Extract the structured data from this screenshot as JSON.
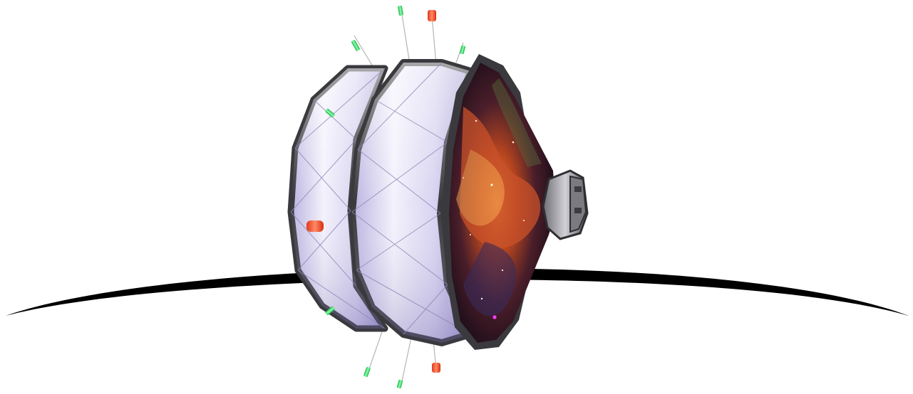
{
  "scene": {
    "background": "#ffffff",
    "colors": {
      "arc": "#000000",
      "hull_light": "#f2f0fb",
      "hull_mid": "#c9c3ea",
      "hull_dark": "#8f87c2",
      "frame": "#3a3a3e",
      "strut": "#a6a6a6",
      "marker_green": "#3be56a",
      "marker_red": "#ff5a36",
      "nebula_orange": "#d9652a",
      "nebula_deep": "#2a1420",
      "nozzle_metal": "#9a9aa0"
    },
    "objects": [
      "horizon-arc",
      "spacecraft-hull",
      "nebula-interior",
      "engine-nozzle",
      "sensor-markers"
    ]
  }
}
